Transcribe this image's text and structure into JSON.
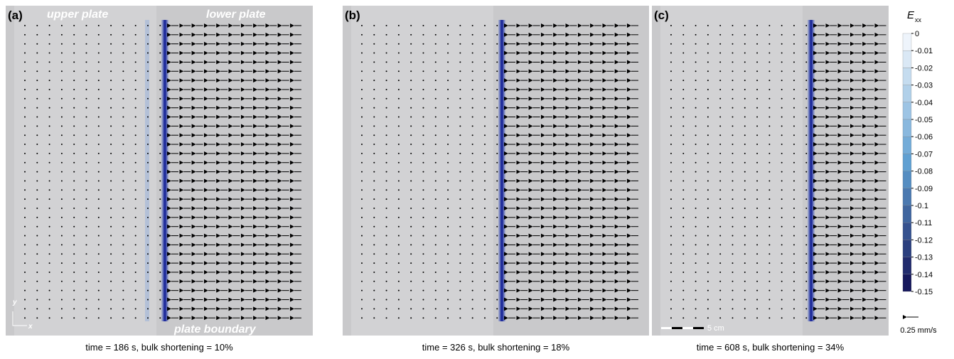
{
  "panels": [
    {
      "label": "(a)",
      "caption": "time = 186 s, bulk shortening = 10%"
    },
    {
      "label": "(b)",
      "caption": "time = 326 s, bulk shortening = 18%"
    },
    {
      "label": "(c)",
      "caption": "time = 608 s, bulk shortening = 34%"
    }
  ],
  "annotations": {
    "upper_plate": "upper plate",
    "lower_plate": "lower plate",
    "plate_boundary": "plate boundary",
    "axis_y": "y",
    "axis_x": "x",
    "scale_bar": "5 cm"
  },
  "colorbar": {
    "title": "E",
    "title_sub": "xx",
    "ticks": [
      "0",
      "-0.01",
      "-0.02",
      "-0.03",
      "-0.04",
      "-0.05",
      "-0.06",
      "-0.07",
      "-0.08",
      "-0.09",
      "-0.1",
      "-0.11",
      "-0.12",
      "-0.13",
      "-0.14",
      "-0.15"
    ]
  },
  "velocity_legend": "0.25 mm/s"
}
